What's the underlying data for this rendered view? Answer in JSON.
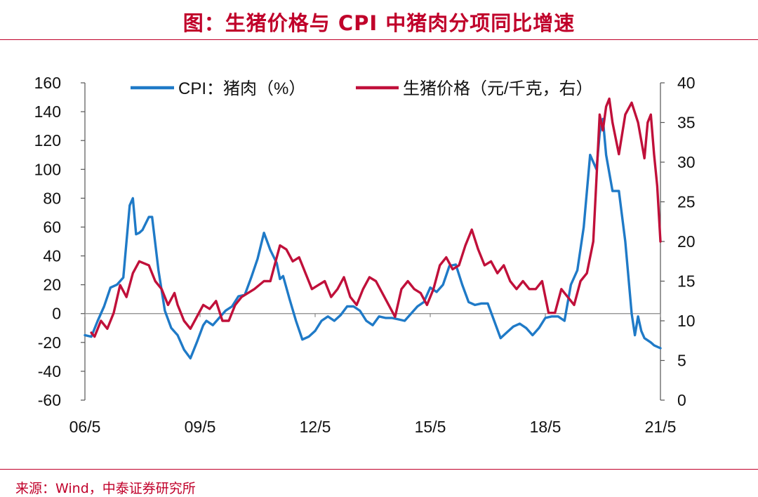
{
  "title": "图：生猪价格与 CPI 中猪肉分项同比增速",
  "source": "来源：Wind，中泰证券研究所",
  "colors": {
    "accent": "#c0002a",
    "cpi": "#1f7ac7",
    "hog": "#c0103a"
  },
  "chart_data": {
    "type": "line",
    "x_ticks": [
      "06/5",
      "09/5",
      "12/5",
      "15/5",
      "18/5",
      "21/5"
    ],
    "x_range": [
      "2006-05",
      "2021-05"
    ],
    "y_left": {
      "ticks": [
        "160",
        "140",
        "120",
        "100",
        "80",
        "60",
        "40",
        "20",
        "0",
        "-20",
        "-40",
        "-60"
      ],
      "ylim": [
        -60,
        160
      ]
    },
    "y_right": {
      "ticks": [
        "40",
        "35",
        "30",
        "25",
        "20",
        "15",
        "10",
        "5",
        "0"
      ],
      "ylim": [
        0,
        40
      ]
    },
    "legend_position": "top",
    "series": [
      {
        "name": "CPI：猪肉（%）",
        "axis": "left",
        "x": [
          "2006-05",
          "2006-07",
          "2006-09",
          "2006-11",
          "2007-01",
          "2007-03",
          "2007-05",
          "2007-07",
          "2007-08",
          "2007-09",
          "2007-10",
          "2007-11",
          "2008-01",
          "2008-02",
          "2008-04",
          "2008-06",
          "2008-08",
          "2008-10",
          "2008-12",
          "2009-02",
          "2009-04",
          "2009-06",
          "2009-07",
          "2009-09",
          "2009-11",
          "2010-01",
          "2010-03",
          "2010-05",
          "2010-07",
          "2010-09",
          "2010-11",
          "2011-01",
          "2011-03",
          "2011-05",
          "2011-06",
          "2011-07",
          "2011-09",
          "2011-11",
          "2012-01",
          "2012-03",
          "2012-05",
          "2012-07",
          "2012-09",
          "2012-11",
          "2013-01",
          "2013-03",
          "2013-05",
          "2013-07",
          "2013-09",
          "2013-11",
          "2014-01",
          "2014-03",
          "2014-05",
          "2014-07",
          "2014-09",
          "2014-11",
          "2015-01",
          "2015-03",
          "2015-05",
          "2015-07",
          "2015-09",
          "2015-11",
          "2016-01",
          "2016-03",
          "2016-05",
          "2016-07",
          "2016-09",
          "2016-11",
          "2017-01",
          "2017-03",
          "2017-05",
          "2017-07",
          "2017-09",
          "2017-11",
          "2018-01",
          "2018-03",
          "2018-05",
          "2018-07",
          "2018-09",
          "2018-11",
          "2019-01",
          "2019-03",
          "2019-05",
          "2019-07",
          "2019-09",
          "2019-10",
          "2019-11",
          "2019-12",
          "2020-02",
          "2020-04",
          "2020-06",
          "2020-08",
          "2020-09",
          "2020-10",
          "2020-11",
          "2020-12",
          "2021-02",
          "2021-03",
          "2021-05"
        ],
        "values": [
          -15,
          -16,
          -5,
          5,
          18,
          20,
          25,
          75,
          80,
          55,
          56,
          58,
          67,
          67,
          30,
          2,
          -10,
          -15,
          -25,
          -31,
          -20,
          -8,
          -5,
          -8,
          -3,
          2,
          5,
          12,
          13,
          25,
          38,
          56,
          44,
          35,
          24,
          26,
          10,
          -5,
          -18,
          -16,
          -12,
          -5,
          -2,
          -5,
          -1,
          5,
          5,
          2,
          -5,
          -8,
          -2,
          -3,
          -3,
          -4,
          -5,
          0,
          5,
          8,
          18,
          15,
          20,
          33,
          34,
          20,
          8,
          6,
          7,
          7,
          -5,
          -17,
          -13,
          -9,
          -7,
          -10,
          -15,
          -10,
          -3,
          -2,
          -2,
          -5,
          20,
          30,
          60,
          110,
          100,
          125,
          135,
          110,
          85,
          85,
          50,
          0,
          -15,
          -2,
          -12,
          -17,
          -20,
          -22,
          -24
        ]
      },
      {
        "name": "生猪价格（元/千克，右）",
        "axis": "right",
        "x": [
          "2006-07",
          "2006-08",
          "2006-10",
          "2006-12",
          "2007-02",
          "2007-04",
          "2007-06",
          "2007-08",
          "2007-10",
          "2008-01",
          "2008-03",
          "2008-05",
          "2008-07",
          "2008-09",
          "2008-10",
          "2008-12",
          "2009-02",
          "2009-04",
          "2009-06",
          "2009-08",
          "2009-10",
          "2009-12",
          "2010-02",
          "2010-04",
          "2010-06",
          "2010-08",
          "2010-10",
          "2011-01",
          "2011-03",
          "2011-05",
          "2011-06",
          "2011-08",
          "2011-10",
          "2011-12",
          "2012-02",
          "2012-04",
          "2012-06",
          "2012-08",
          "2012-10",
          "2012-12",
          "2013-02",
          "2013-04",
          "2013-06",
          "2013-08",
          "2013-10",
          "2013-12",
          "2014-02",
          "2014-04",
          "2014-06",
          "2014-08",
          "2014-10",
          "2014-12",
          "2015-02",
          "2015-04",
          "2015-06",
          "2015-08",
          "2015-10",
          "2015-12",
          "2016-02",
          "2016-04",
          "2016-06",
          "2016-08",
          "2016-10",
          "2016-12",
          "2017-02",
          "2017-04",
          "2017-06",
          "2017-08",
          "2017-10",
          "2017-12",
          "2018-02",
          "2018-04",
          "2018-06",
          "2018-08",
          "2018-10",
          "2018-12",
          "2019-02",
          "2019-04",
          "2019-06",
          "2019-08",
          "2019-09",
          "2019-10",
          "2019-11",
          "2019-12",
          "2020-01",
          "2020-02",
          "2020-04",
          "2020-06",
          "2020-08",
          "2020-10",
          "2020-12",
          "2021-01",
          "2021-02",
          "2021-03",
          "2021-04",
          "2021-05"
        ],
        "values": [
          8.5,
          8,
          10,
          9,
          11,
          14.5,
          13,
          16,
          17.5,
          17,
          15,
          14,
          12,
          13.5,
          12,
          10,
          9,
          10.5,
          12,
          11.5,
          12.5,
          10,
          10,
          12,
          13,
          13.5,
          14,
          15,
          15,
          18,
          19.5,
          19,
          17.5,
          18,
          16,
          14,
          14.5,
          15,
          13,
          14,
          15.5,
          13,
          12,
          14,
          15.5,
          15,
          13.5,
          12,
          10.5,
          14,
          15,
          14,
          13.5,
          12,
          14,
          17,
          18,
          16.5,
          17,
          19.5,
          21.5,
          19,
          17,
          17.5,
          16,
          17,
          15,
          14,
          15,
          14,
          14,
          15,
          11,
          11,
          14,
          13,
          12,
          15,
          16,
          20,
          28,
          36,
          34,
          37,
          38,
          35,
          31,
          36,
          37.5,
          35,
          30.5,
          35,
          36,
          31,
          27,
          20
        ]
      }
    ]
  }
}
